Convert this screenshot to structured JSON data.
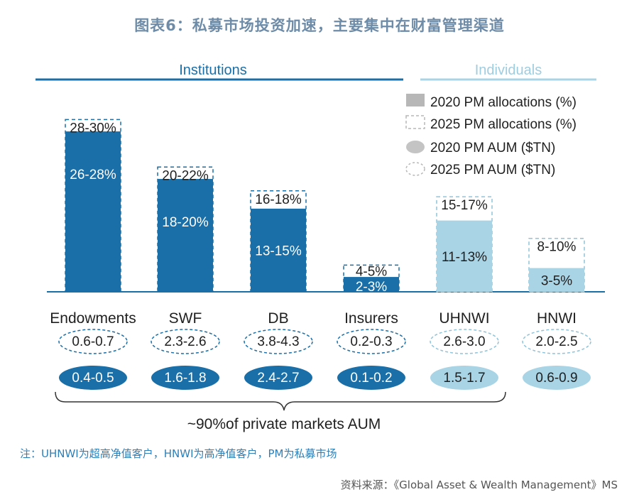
{
  "title": "图表6：私募市场投资加速，主要集中在财富管理渠道",
  "note": "注：UHNWI为超高净值客户，HNWI为高净值客户，PM为私募市场",
  "source": "资料来源：《Global Asset & Wealth Management》MS",
  "colors": {
    "institution": "#1a6fa8",
    "individual": "#a8d4e6",
    "title": "#6e8ca8",
    "axis": "#1a6fa8"
  },
  "chart_data": {
    "type": "bar",
    "groups": {
      "institutions": "Institutions",
      "individuals": "Individuals"
    },
    "legend": [
      "2020 PM allocations (%)",
      "2025 PM allocations (%)",
      "2020 PM AUM ($TN)",
      "2025 PM AUM ($TN)"
    ],
    "categories": [
      "Endowments",
      "SWF",
      "DB",
      "Insurers",
      "UHNWI",
      "HNWI"
    ],
    "category_group": [
      "institutions",
      "institutions",
      "institutions",
      "institutions",
      "individuals",
      "individuals"
    ],
    "series": [
      {
        "name": "2020 PM allocations (%)",
        "values": [
          27,
          19,
          14,
          2.5,
          12,
          4
        ],
        "labels": [
          "26-28%",
          "18-20%",
          "13-15%",
          "2-3%",
          "11-13%",
          "3-5%"
        ]
      },
      {
        "name": "2025 PM allocations (%)",
        "values": [
          29,
          21,
          17,
          4.5,
          16,
          9
        ],
        "labels": [
          "28-30%",
          "20-22%",
          "16-18%",
          "4-5%",
          "15-17%",
          "8-10%"
        ]
      },
      {
        "name": "2020 PM AUM ($TN)",
        "labels": [
          "0.4-0.5",
          "1.6-1.8",
          "2.4-2.7",
          "0.1-0.2",
          "1.5-1.7",
          "0.6-0.9"
        ]
      },
      {
        "name": "2025 PM AUM ($TN)",
        "labels": [
          "0.6-0.7",
          "2.3-2.6",
          "3.8-4.3",
          "0.2-0.3",
          "2.6-3.0",
          "2.0-2.5"
        ]
      }
    ],
    "ylim": [
      0,
      30
    ],
    "annotation": "~90%of private markets AUM"
  }
}
